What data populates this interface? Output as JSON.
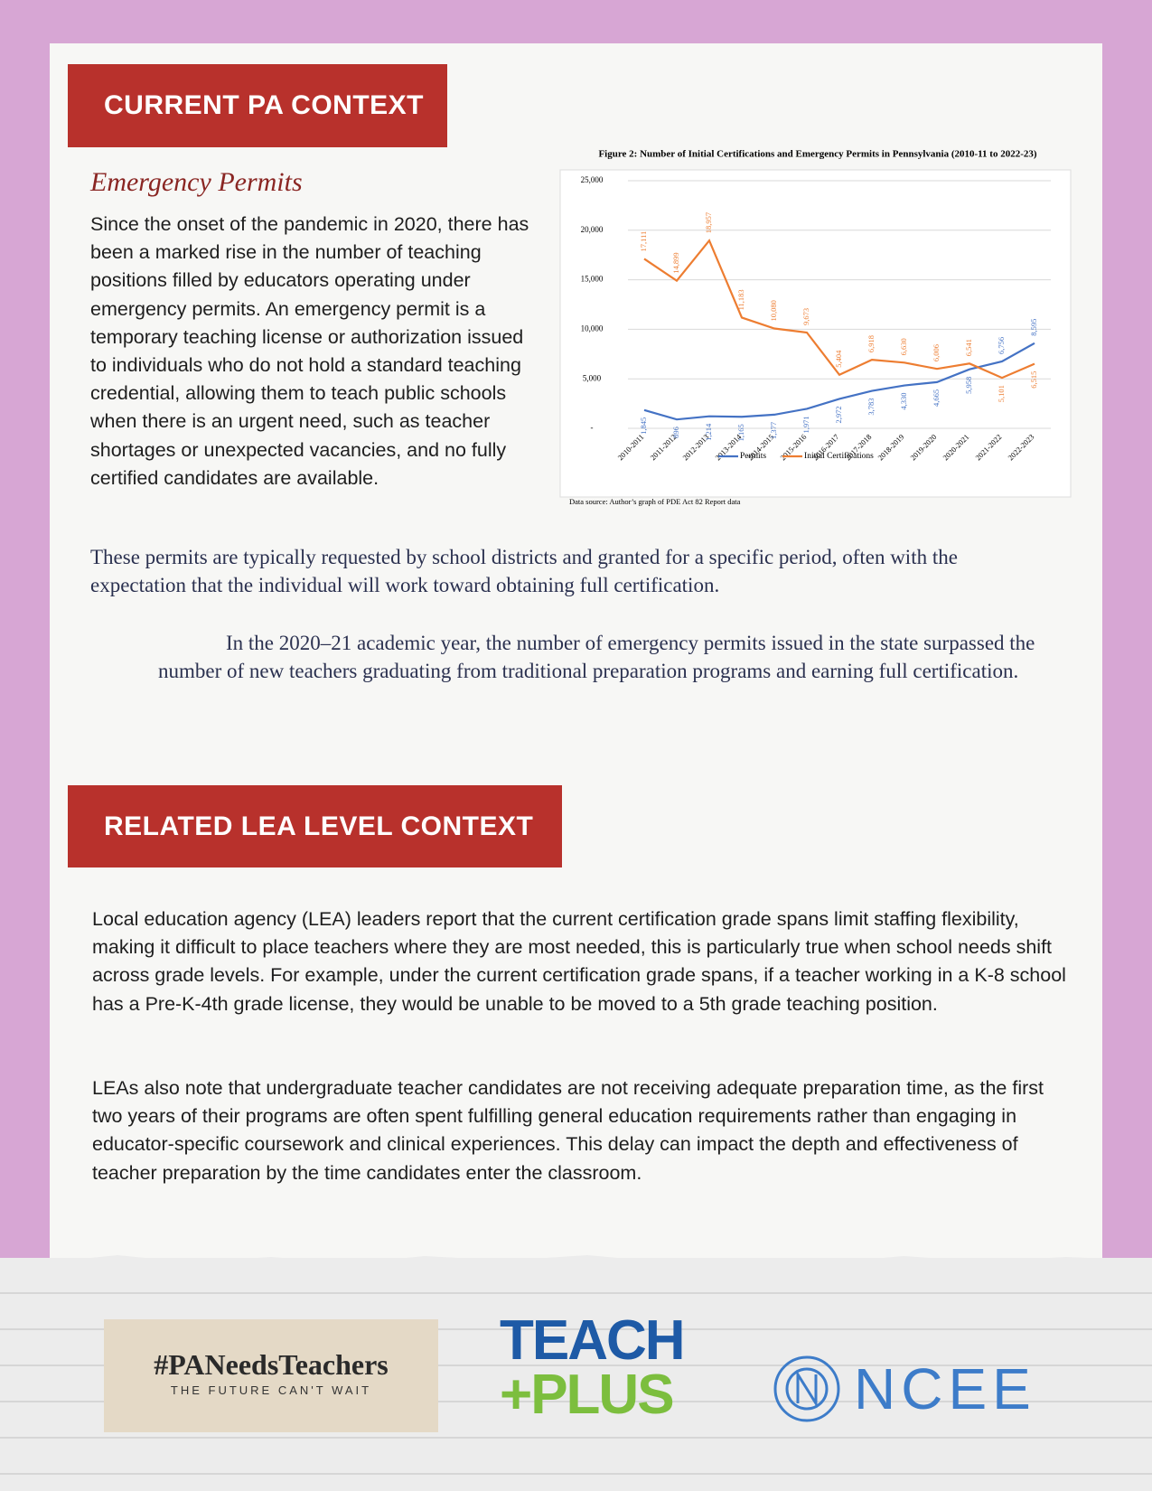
{
  "section1": {
    "heading": "CURRENT PA CONTEXT",
    "subheading": "Emergency Permits",
    "paragraph": "Since the onset of the pandemic in 2020, there has been a marked rise in the number of teaching positions filled by educators operating under emergency permits. An emergency permit is a temporary teaching license or authorization issued to individuals who do not hold a standard teaching credential, allowing them to teach public schools when there is an urgent need, such as teacher shortages or unexpected vacancies, and no fully certified candidates are available.",
    "paragraph2": "These permits are typically requested by school districts and granted for a specific period, often with the expectation that the individual will work toward obtaining full certification.",
    "callout": "In the 2020–21 academic year, the number of emergency permits issued in the state surpassed the number of new teachers graduating from traditional preparation programs and earning full certification."
  },
  "chart_data": {
    "type": "line",
    "title": "Figure 2: Number of Initial Certifications and Emergency Permits in Pennsylvania (2010-11 to 2022-23)",
    "source": "Data source: Author’s graph of PDE Act 82 Report data",
    "categories": [
      "2010-2011",
      "2011-2012",
      "2012-2013",
      "2013-2014",
      "2014-2015",
      "2015-2016",
      "2016-2017",
      "2017-2018",
      "2018-2019",
      "2019-2020",
      "2020-2021",
      "2021-2022",
      "2022-2023"
    ],
    "series": [
      {
        "name": "Permits",
        "color": "#4472c4",
        "values": [
          1845,
          896,
          1214,
          1165,
          1377,
          1971,
          2972,
          3783,
          4330,
          4665,
          5958,
          6756,
          8595
        ],
        "value_labels": [
          "1,845",
          "896",
          "1,214",
          "1,165",
          "1,377",
          "1,971",
          "2,972",
          "3,783",
          "4,330",
          "4,665",
          "5,958",
          "6,756",
          "8,595"
        ]
      },
      {
        "name": "Initial Certifications",
        "color": "#ed7d31",
        "values": [
          17111,
          14899,
          18957,
          11183,
          10080,
          9673,
          5404,
          6918,
          6630,
          6006,
          6541,
          5101,
          6515
        ],
        "value_labels": [
          "17,111",
          "14,899",
          "18,957",
          "11,183",
          "10,080",
          "9,673",
          "5,404",
          "6,918",
          "6,630",
          "6,006",
          "6,541",
          "5,101",
          "6,515"
        ]
      }
    ],
    "ylim": [
      0,
      25000
    ],
    "yticks": [
      {
        "value": 0,
        "label": "-"
      },
      {
        "value": 5000,
        "label": "5,000"
      },
      {
        "value": 10000,
        "label": "10,000"
      },
      {
        "value": 15000,
        "label": "15,000"
      },
      {
        "value": 20000,
        "label": "20,000"
      },
      {
        "value": 25000,
        "label": "25,000"
      }
    ],
    "grid": true,
    "legend": "bottom"
  },
  "section2": {
    "heading": "RELATED LEA LEVEL CONTEXT",
    "paragraphs": [
      "Local education agency (LEA) leaders report that the current certification grade spans limit staffing flexibility, making it difficult to place teachers where they are most needed, this is particularly true when school needs shift across grade levels. For example, under the current certification grade spans, if a teacher working in a K-8 school has a Pre-K-4th grade license, they would be unable to be moved to a 5th grade teaching position.",
      "LEAs also note that undergraduate teacher candidates are not receiving adequate preparation time, as the first two years of their programs are often spent fulfilling general education requirements rather than engaging in educator-specific coursework and clinical experiences. This delay can impact the depth and effectiveness of teacher preparation by the time candidates enter the classroom."
    ]
  },
  "footer": {
    "tag": "#PANeedsTeachers",
    "tagline": "THE FUTURE CAN'T WAIT",
    "logo1_top": "TEACH",
    "logo1_bottom": "+PLUS",
    "logo2": "NCEE"
  }
}
